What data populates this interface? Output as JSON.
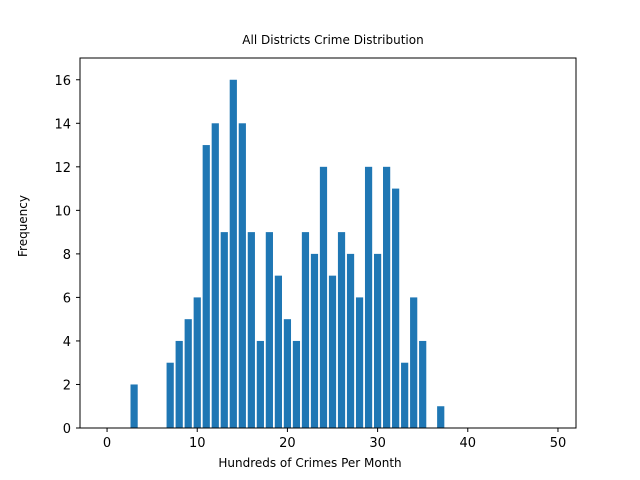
{
  "chart_data": {
    "type": "bar",
    "title": "All Districts Crime Distribution",
    "xlabel": "Hundreds of Crimes Per Month",
    "ylabel": "Frequency",
    "xlim": [
      -3,
      52
    ],
    "ylim": [
      0,
      17
    ],
    "xticks": [
      0,
      10,
      20,
      30,
      40,
      50
    ],
    "yticks": [
      0,
      2,
      4,
      6,
      8,
      10,
      12,
      14,
      16
    ],
    "grid": false,
    "legend": "none",
    "bar_color": "#1f77b4",
    "x": [
      0,
      1,
      2,
      3,
      4,
      5,
      6,
      7,
      8,
      9,
      10,
      11,
      12,
      13,
      14,
      15,
      16,
      17,
      18,
      19,
      20,
      21,
      22,
      23,
      24,
      25,
      26,
      27,
      28,
      29,
      30,
      31,
      32,
      33,
      34,
      35,
      36,
      37,
      38,
      39,
      40,
      41,
      42,
      43,
      44,
      45,
      46,
      47,
      48,
      49,
      50
    ],
    "values": [
      0,
      0,
      0,
      2,
      0,
      0,
      0,
      3,
      4,
      5,
      6,
      13,
      14,
      9,
      16,
      14,
      9,
      4,
      9,
      7,
      5,
      4,
      9,
      8,
      12,
      7,
      9,
      8,
      6,
      12,
      8,
      12,
      11,
      3,
      6,
      4,
      0,
      1,
      0,
      0,
      0,
      0,
      0,
      0,
      0,
      0,
      0,
      0,
      0,
      0,
      0
    ]
  }
}
